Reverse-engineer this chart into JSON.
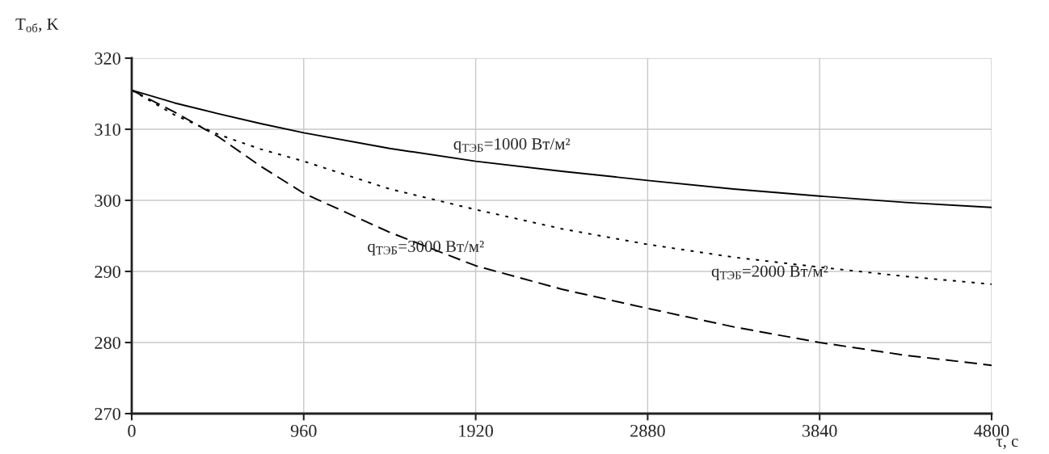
{
  "chart_data": {
    "type": "line",
    "xlabel": "τ, с",
    "ylabel": "T$_{об}$, K",
    "x": [
      0,
      240,
      480,
      720,
      960,
      1440,
      1920,
      2400,
      2880,
      3360,
      3840,
      4320,
      4800
    ],
    "series": [
      {
        "name": "q$_{ТЭБ}$=1000 Вт/м²",
        "color": "#000000",
        "line_style": "solid",
        "values": [
          315.5,
          313.7,
          312.2,
          310.8,
          309.5,
          307.3,
          305.5,
          304.1,
          302.8,
          301.6,
          300.6,
          299.7,
          299.0
        ]
      },
      {
        "name": "q$_{ТЭБ}$=2000 Вт/м²",
        "color": "#000000",
        "line_style": "dotted",
        "values": [
          315.5,
          312.0,
          309.3,
          307.2,
          305.5,
          301.6,
          298.7,
          296.0,
          293.8,
          292.0,
          290.6,
          289.3,
          288.2
        ]
      },
      {
        "name": "q$_{ТЭБ}$=3000 Вт/м²",
        "color": "#000000",
        "line_style": "dashed",
        "values": [
          315.5,
          312.4,
          309.0,
          304.8,
          301.0,
          295.5,
          290.8,
          287.5,
          284.8,
          282.2,
          280.0,
          278.2,
          276.8
        ]
      }
    ],
    "xlim": [
      0,
      4800
    ],
    "xticks": [
      0,
      960,
      1920,
      2880,
      3840,
      4800
    ],
    "ylim": [
      270,
      320
    ],
    "yticks": [
      270,
      280,
      290,
      300,
      310,
      320
    ],
    "grid": true
  }
}
